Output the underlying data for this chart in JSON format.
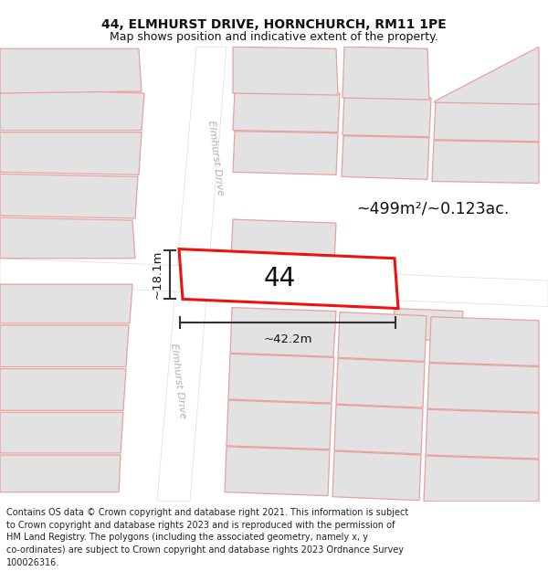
{
  "title": "44, ELMHURST DRIVE, HORNCHURCH, RM11 1PE",
  "subtitle": "Map shows position and indicative extent of the property.",
  "footer": "Contains OS data © Crown copyright and database right 2021. This information is subject\nto Crown copyright and database rights 2023 and is reproduced with the permission of\nHM Land Registry. The polygons (including the associated geometry, namely x, y\nco-ordinates) are subject to Crown copyright and database rights 2023 Ordnance Survey\n100026316.",
  "map_bg": "#f5f5f5",
  "block_fc": "#e2e2e2",
  "block_ec": "#e8a0a0",
  "road_fc": "#ffffff",
  "road_ec": "#dddddd",
  "highlight_ec": "#ee1111",
  "highlight_fc": "#ffffff",
  "dim_color": "#333333",
  "road_label_color": "#b0b0b0",
  "area_text": "~499m²/~0.123ac.",
  "number_label": "44",
  "width_dim": "~42.2m",
  "height_dim": "~18.1m",
  "road_name": "Elmhurst Drive",
  "title_fontsize": 10,
  "subtitle_fontsize": 9,
  "footer_fontsize": 7.0,
  "sep_color": "#cccccc",
  "fig_bg": "#ffffff"
}
